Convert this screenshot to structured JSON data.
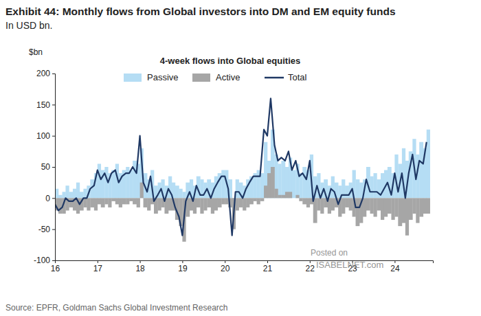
{
  "chart_data": {
    "type": "bar",
    "title": "Exhibit 44: Monthly flows from Global investors into DM and EM equity funds",
    "subtitle": "In USD bn.",
    "plot_title": "4-week flows into Global equities",
    "y_label": "$bn",
    "source": "Source: EPFR, Goldman Sachs Global Investment Research",
    "annotations": [
      "Posted on",
      "ISABELNET.com"
    ],
    "legend": "top",
    "grid": false,
    "stacked": false,
    "xlim": [
      2016,
      2024.9
    ],
    "xticks": [
      {
        "value": 2016,
        "label": "16"
      },
      {
        "value": 2017,
        "label": "17"
      },
      {
        "value": 2018,
        "label": "18"
      },
      {
        "value": 2019,
        "label": "19"
      },
      {
        "value": 2020,
        "label": "20"
      },
      {
        "value": 2021,
        "label": "21"
      },
      {
        "value": 2022,
        "label": "22"
      },
      {
        "value": 2023,
        "label": "23"
      },
      {
        "value": 2024,
        "label": "24"
      }
    ],
    "ylim": [
      -100,
      200
    ],
    "yticks": [
      -100,
      -50,
      0,
      50,
      100,
      150,
      200
    ],
    "x": [
      2016.0,
      2016.08,
      2016.17,
      2016.25,
      2016.33,
      2016.42,
      2016.5,
      2016.58,
      2016.67,
      2016.75,
      2016.83,
      2016.92,
      2017.0,
      2017.08,
      2017.17,
      2017.25,
      2017.33,
      2017.42,
      2017.5,
      2017.58,
      2017.67,
      2017.75,
      2017.83,
      2017.92,
      2018.0,
      2018.08,
      2018.17,
      2018.25,
      2018.33,
      2018.42,
      2018.5,
      2018.58,
      2018.67,
      2018.75,
      2018.83,
      2018.92,
      2019.0,
      2019.08,
      2019.17,
      2019.25,
      2019.33,
      2019.42,
      2019.5,
      2019.58,
      2019.67,
      2019.75,
      2019.83,
      2019.92,
      2020.0,
      2020.08,
      2020.17,
      2020.25,
      2020.33,
      2020.42,
      2020.5,
      2020.58,
      2020.67,
      2020.75,
      2020.83,
      2020.92,
      2021.0,
      2021.08,
      2021.17,
      2021.25,
      2021.33,
      2021.42,
      2021.5,
      2021.58,
      2021.67,
      2021.75,
      2021.83,
      2021.92,
      2022.0,
      2022.08,
      2022.17,
      2022.25,
      2022.33,
      2022.42,
      2022.5,
      2022.58,
      2022.67,
      2022.75,
      2022.83,
      2022.92,
      2023.0,
      2023.08,
      2023.17,
      2023.25,
      2023.33,
      2023.42,
      2023.5,
      2023.58,
      2023.67,
      2023.75,
      2023.83,
      2023.92,
      2024.0,
      2024.08,
      2024.17,
      2024.25,
      2024.33,
      2024.42,
      2024.5,
      2024.58,
      2024.67,
      2024.75
    ],
    "series": [
      {
        "name": "Passive",
        "type": "bar",
        "color": "#b5ddf4",
        "values": [
          15,
          5,
          10,
          20,
          10,
          15,
          25,
          10,
          15,
          20,
          30,
          40,
          55,
          45,
          50,
          40,
          45,
          55,
          40,
          45,
          50,
          45,
          60,
          55,
          80,
          40,
          30,
          45,
          20,
          25,
          30,
          20,
          35,
          25,
          20,
          15,
          10,
          25,
          30,
          20,
          35,
          30,
          25,
          30,
          25,
          35,
          40,
          45,
          45,
          30,
          -10,
          30,
          25,
          20,
          30,
          35,
          40,
          45,
          40,
          90,
          60,
          110,
          70,
          55,
          60,
          50,
          65,
          45,
          55,
          40,
          50,
          45,
          70,
          35,
          40,
          25,
          30,
          20,
          35,
          25,
          20,
          30,
          20,
          25,
          45,
          30,
          25,
          30,
          50,
          35,
          40,
          30,
          40,
          45,
          50,
          40,
          70,
          55,
          80,
          60,
          75,
          95,
          70,
          90,
          80,
          110
        ]
      },
      {
        "name": "Active",
        "type": "bar",
        "color": "#a6a6a6",
        "values": [
          -20,
          -25,
          -25,
          -20,
          -15,
          -20,
          -25,
          -20,
          -15,
          -20,
          -15,
          -20,
          -10,
          -15,
          -10,
          -15,
          -5,
          -10,
          -15,
          -10,
          -10,
          -5,
          -10,
          -15,
          25,
          -15,
          -20,
          -10,
          -25,
          -20,
          -15,
          -25,
          -20,
          -20,
          -35,
          -45,
          -70,
          -30,
          -20,
          -25,
          -15,
          -25,
          -20,
          -15,
          -25,
          -20,
          -15,
          -10,
          -10,
          -15,
          -50,
          -20,
          -15,
          -20,
          -15,
          -10,
          -5,
          -10,
          -5,
          20,
          40,
          50,
          15,
          5,
          5,
          10,
          10,
          0,
          5,
          -5,
          -10,
          -15,
          -10,
          -40,
          -20,
          -25,
          -15,
          -25,
          -20,
          -15,
          -30,
          -25,
          -15,
          -20,
          -30,
          -45,
          -40,
          -30,
          -20,
          -25,
          -30,
          -20,
          -35,
          -30,
          -25,
          -35,
          -30,
          -45,
          -40,
          -60,
          -35,
          -25,
          -40,
          -30,
          -25,
          -25
        ]
      },
      {
        "name": "Total",
        "type": "line",
        "color": "#1f3864",
        "values": [
          -10,
          -20,
          -15,
          0,
          -5,
          -5,
          0,
          -10,
          0,
          0,
          15,
          20,
          45,
          30,
          40,
          25,
          40,
          45,
          25,
          35,
          40,
          40,
          50,
          40,
          100,
          25,
          10,
          35,
          -5,
          5,
          15,
          -5,
          15,
          5,
          -15,
          -30,
          -60,
          -5,
          10,
          -5,
          20,
          5,
          5,
          15,
          0,
          15,
          25,
          35,
          35,
          15,
          -60,
          10,
          10,
          0,
          15,
          25,
          35,
          35,
          35,
          110,
          100,
          160,
          85,
          60,
          65,
          60,
          75,
          45,
          60,
          35,
          40,
          30,
          60,
          -5,
          20,
          0,
          15,
          -5,
          15,
          10,
          -10,
          5,
          5,
          5,
          15,
          -15,
          -15,
          0,
          30,
          10,
          10,
          10,
          5,
          15,
          25,
          5,
          40,
          10,
          40,
          0,
          40,
          70,
          30,
          60,
          55,
          90
        ]
      }
    ]
  }
}
